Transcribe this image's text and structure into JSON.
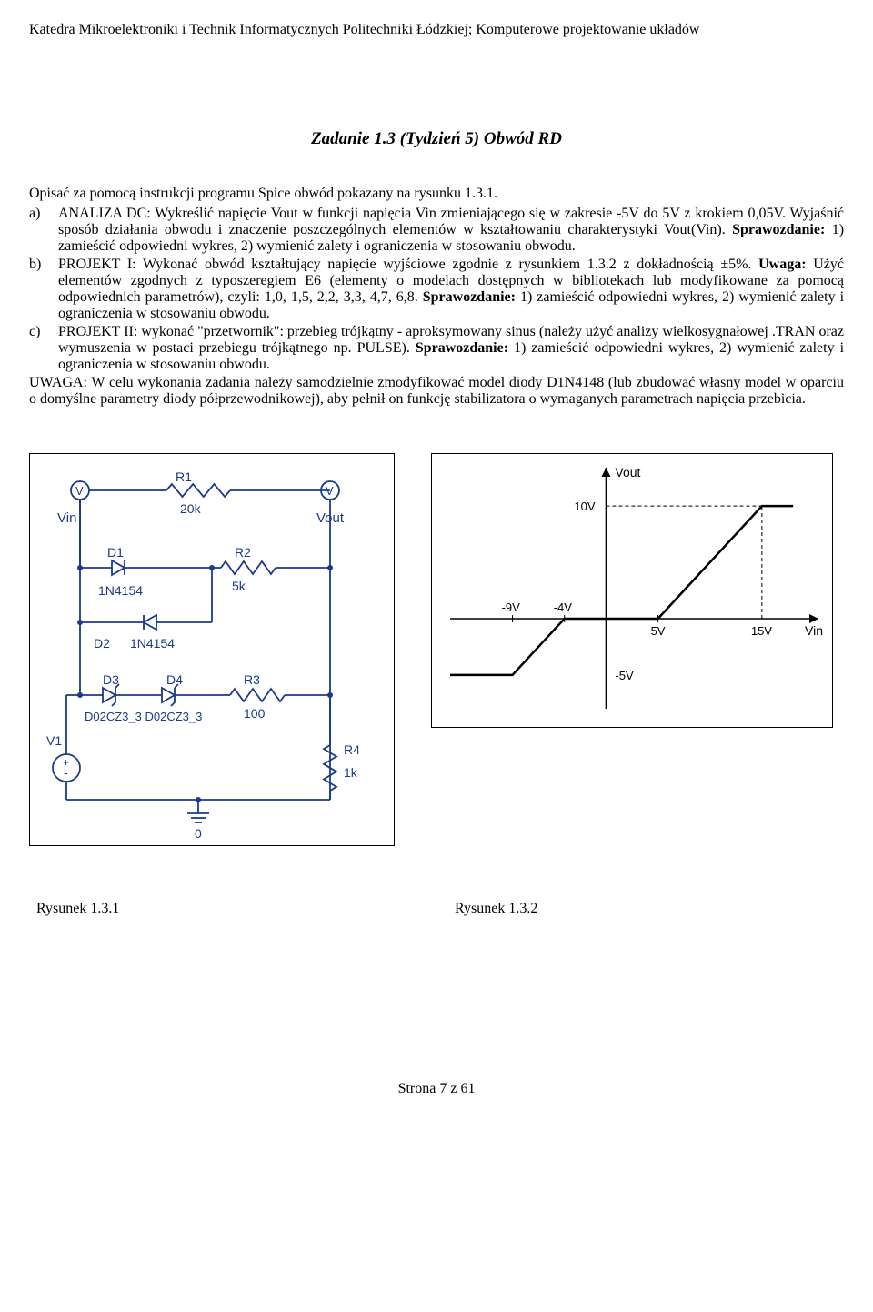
{
  "header": "Katedra Mikroelektroniki i Technik Informatycznych Politechniki Łódzkiej; Komputerowe projektowanie układów",
  "title": "Zadanie 1.3 (Tydzień 5) Obwód RD",
  "intro": "Opisać za pomocą instrukcji programu Spice obwód pokazany na rysunku 1.3.1.",
  "items": {
    "a": {
      "marker": "a)",
      "t1": "ANALIZA DC: Wykreślić napięcie Vout w funkcji napięcia Vin zmieniającego się w zakresie -5V do 5V z krokiem 0,05V. Wyjaśnić sposób działania obwodu i znaczenie poszczególnych elementów w kształtowaniu charakterystyki Vout(Vin). ",
      "b1": "Sprawozdanie:",
      "t2": " 1) zamieścić odpowiedni wykres, 2) wymienić zalety i ograniczenia w stosowaniu obwodu."
    },
    "b": {
      "marker": "b)",
      "t1": "PROJEKT I: Wykonać obwód kształtujący napięcie wyjściowe zgodnie z rysunkiem 1.3.2 z dokładnością ±5%. ",
      "b1": "Uwaga:",
      "t2": " Użyć elementów zgodnych z typoszeregiem E6 (elementy o modelach dostępnych w bibliotekach lub modyfikowane za pomocą odpowiednich parametrów), czyli: 1,0, 1,5, 2,2, 3,3, 4,7, 6,8. ",
      "b2": "Sprawozdanie:",
      "t3": " 1) zamieścić odpowiedni wykres, 2) wymienić zalety i ograniczenia w stosowaniu obwodu."
    },
    "c": {
      "marker": "c)",
      "t1": "PROJEKT II: wykonać \"przetwornik\": przebieg trójkątny - aproksymowany sinus (należy użyć analizy wielkosygnałowej .TRAN oraz wymuszenia w postaci przebiegu trójkątnego np. PULSE). ",
      "b1": "Sprawozdanie:",
      "t2": " 1) zamieścić odpowiedni wykres, 2) wymienić zalety i ograniczenia w stosowaniu obwodu."
    }
  },
  "note": "UWAGA: W celu wykonania zadania należy samodzielnie zmodyfikować model diody D1N4148 (lub zbudować własny model w oparciu o domyślne parametry diody półprzewodnikowej), aby pełnił on funkcję stabilizatora o wymaganych parametrach napięcia przebicia.",
  "circuit": {
    "Vin": "Vin",
    "Vout": "Vout",
    "R1": "R1",
    "R1v": "20k",
    "R2": "R2",
    "R2v": "5k",
    "R3": "R3",
    "R3v": "100",
    "R4": "R4",
    "R4v": "1k",
    "D1": "D1",
    "D1v": "1N4154",
    "D2": "D2",
    "D2v": "1N4154",
    "D3": "D3",
    "D4": "D4",
    "D34v": "D02CZ3_3 D02CZ3_3",
    "V1": "V1",
    "gnd": "0",
    "probe": "V"
  },
  "graph": {
    "ylabel": "Vout",
    "xlabel": "Vin",
    "y_top": "10V",
    "y_bot": "-5V",
    "x_ticks_neg": [
      "-9V",
      "-4V"
    ],
    "x_ticks_pos": [
      "5V",
      "15V"
    ],
    "points": [
      {
        "x": -15,
        "y": -5
      },
      {
        "x": -9,
        "y": -5
      },
      {
        "x": -4,
        "y": 0
      },
      {
        "x": 5,
        "y": 0
      },
      {
        "x": 15,
        "y": 10
      },
      {
        "x": 18,
        "y": 10
      }
    ],
    "xlim": [
      -15,
      20
    ],
    "ylim": [
      -8,
      13
    ],
    "line_color": "#000000",
    "axis_color": "#000000",
    "dash_color": "#000000",
    "bg": "#ffffff"
  },
  "captions": {
    "left": "Rysunek 1.3.1",
    "right": "Rysunek 1.3.2"
  },
  "footer": "Strona 7 z 61"
}
